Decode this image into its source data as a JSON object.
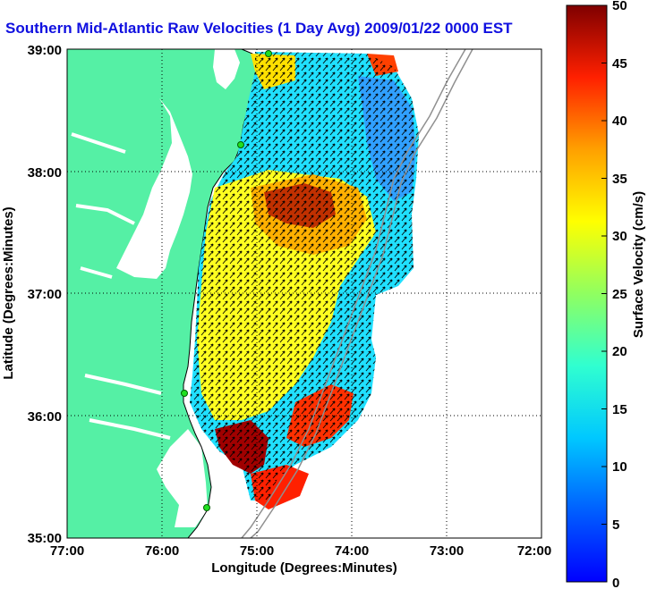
{
  "title": "Southern Mid-Atlantic Raw Velocities (1 Day Avg) 2009/01/22 0000 EST",
  "chart_data": {
    "type": "heatmap",
    "xlabel": "Longitude (Degrees:Minutes)",
    "ylabel": "Latitude (Degrees:Minutes)",
    "x_ticks": [
      "77:00",
      "76:00",
      "75:00",
      "74:00",
      "73:00",
      "72:00"
    ],
    "y_ticks": [
      "39:00",
      "38:00",
      "37:00",
      "36:00",
      "35:00"
    ],
    "xlim": [
      -77,
      -72
    ],
    "ylim": [
      35,
      39
    ],
    "grid": true,
    "colorbar": {
      "label": "Surface Velocity (cm/s)",
      "ticks": [
        "0",
        "5",
        "10",
        "15",
        "20",
        "25",
        "30",
        "35",
        "40",
        "45",
        "50"
      ],
      "range": [
        0,
        50
      ]
    }
  },
  "colors": {
    "land": "#55f0a5",
    "title": "#1010e0"
  }
}
